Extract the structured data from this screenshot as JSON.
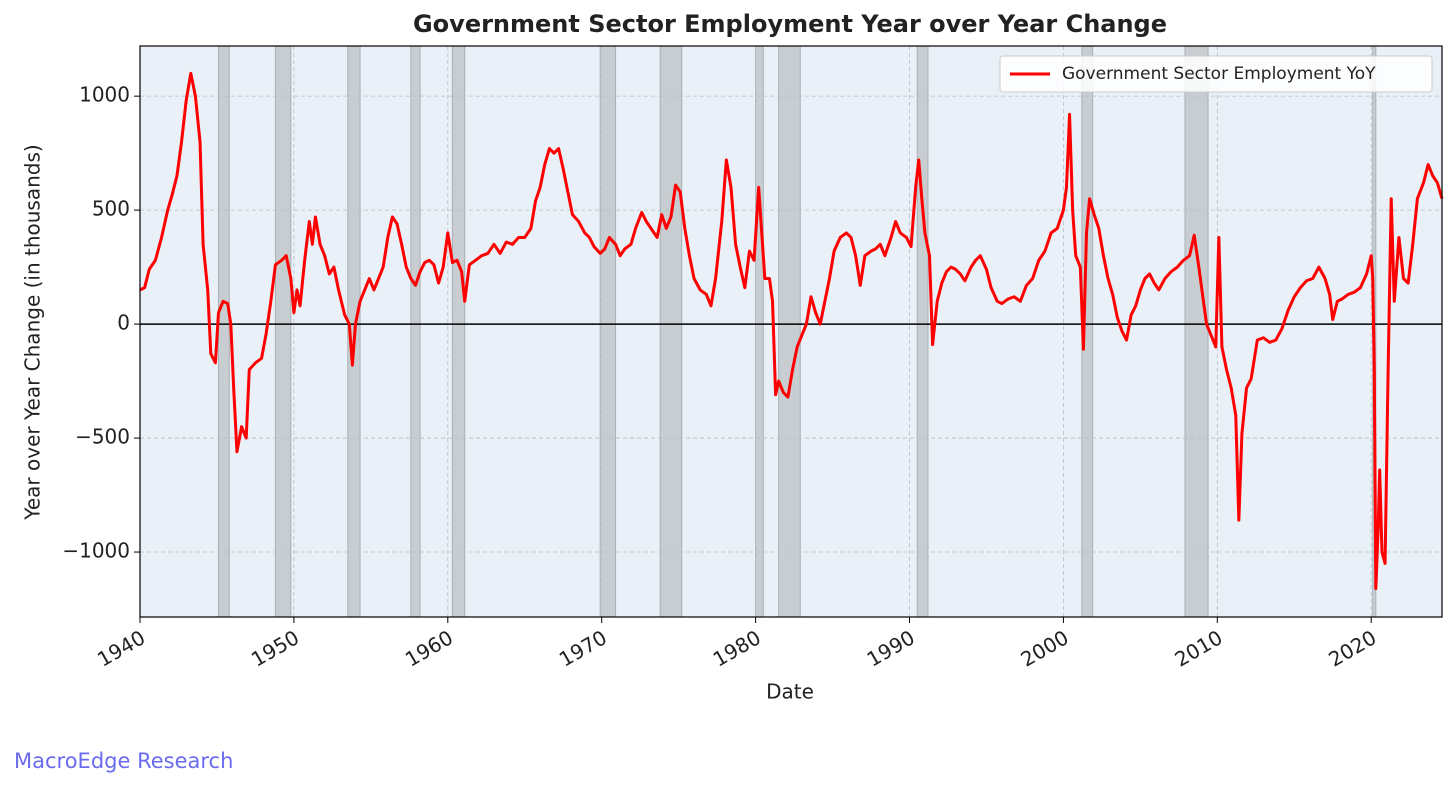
{
  "chart_data": {
    "type": "line",
    "title": "Government Sector Employment Year over Year Change",
    "xlabel": "Date",
    "ylabel": "Year over Year Change (in thousands)",
    "watermark": "MacroEdge Research",
    "legend": "upper right",
    "grid": true,
    "hline": 0,
    "xlim": [
      1940,
      2024.6
    ],
    "ylim": [
      -1285,
      1220
    ],
    "xticks": [
      1940,
      1950,
      1960,
      1970,
      1980,
      1990,
      2000,
      2010,
      2020
    ],
    "yticks": [
      {
        "value": -1000,
        "label": "−1000"
      },
      {
        "value": -500,
        "label": "−500"
      },
      0,
      500,
      1000
    ],
    "recessions": [
      [
        1945.1,
        1945.8
      ],
      [
        1948.8,
        1949.8
      ],
      [
        1953.5,
        1954.3
      ],
      [
        1957.6,
        1958.2
      ],
      [
        1960.3,
        1961.1
      ],
      [
        1969.9,
        1970.9
      ],
      [
        1973.8,
        1975.2
      ],
      [
        1980.0,
        1980.5
      ],
      [
        1981.5,
        1982.9
      ],
      [
        1990.5,
        1991.2
      ],
      [
        2001.2,
        2001.9
      ],
      [
        2007.9,
        2009.4
      ],
      [
        2020.1,
        2020.3
      ]
    ],
    "recession_color": "#c8cdd2",
    "x": [
      1940.0,
      1940.3,
      1940.6,
      1941.0,
      1941.4,
      1941.8,
      1942.1,
      1942.4,
      1942.7,
      1943.0,
      1943.3,
      1943.6,
      1943.9,
      1944.1,
      1944.4,
      1944.6,
      1944.9,
      1945.1,
      1945.4,
      1945.7,
      1945.9,
      1946.1,
      1946.3,
      1946.6,
      1946.9,
      1947.1,
      1947.5,
      1947.9,
      1948.2,
      1948.5,
      1948.8,
      1949.2,
      1949.5,
      1949.8,
      1950.0,
      1950.2,
      1950.4,
      1950.7,
      1951.0,
      1951.2,
      1951.4,
      1951.7,
      1952.0,
      1952.3,
      1952.6,
      1952.9,
      1953.3,
      1953.6,
      1953.8,
      1954.0,
      1954.3,
      1954.6,
      1954.9,
      1955.2,
      1955.5,
      1955.8,
      1956.1,
      1956.4,
      1956.7,
      1957.0,
      1957.3,
      1957.6,
      1957.9,
      1958.2,
      1958.5,
      1958.8,
      1959.1,
      1959.4,
      1959.7,
      1960.0,
      1960.3,
      1960.6,
      1960.9,
      1961.1,
      1961.4,
      1961.8,
      1962.2,
      1962.6,
      1963.0,
      1963.4,
      1963.8,
      1964.2,
      1964.6,
      1965.0,
      1965.4,
      1965.7,
      1966.0,
      1966.3,
      1966.6,
      1966.9,
      1967.2,
      1967.5,
      1967.8,
      1968.1,
      1968.5,
      1968.9,
      1969.2,
      1969.5,
      1969.9,
      1970.2,
      1970.5,
      1970.9,
      1971.2,
      1971.5,
      1971.9,
      1972.2,
      1972.6,
      1972.9,
      1973.2,
      1973.6,
      1973.9,
      1974.2,
      1974.5,
      1974.8,
      1975.1,
      1975.4,
      1975.7,
      1976.0,
      1976.4,
      1976.8,
      1977.1,
      1977.4,
      1977.8,
      1978.1,
      1978.4,
      1978.7,
      1979.0,
      1979.3,
      1979.6,
      1979.9,
      1980.2,
      1980.4,
      1980.6,
      1980.9,
      1981.1,
      1981.3,
      1981.5,
      1981.8,
      1982.1,
      1982.4,
      1982.7,
      1983.0,
      1983.3,
      1983.6,
      1983.9,
      1984.2,
      1984.5,
      1984.8,
      1985.1,
      1985.5,
      1985.9,
      1986.2,
      1986.5,
      1986.8,
      1987.1,
      1987.5,
      1987.8,
      1988.1,
      1988.4,
      1988.8,
      1989.1,
      1989.4,
      1989.8,
      1990.1,
      1990.4,
      1990.6,
      1990.8,
      1991.0,
      1991.3,
      1991.5,
      1991.8,
      1992.1,
      1992.4,
      1992.7,
      1993.0,
      1993.3,
      1993.6,
      1994.0,
      1994.3,
      1994.6,
      1995.0,
      1995.3,
      1995.7,
      1996.0,
      1996.4,
      1996.8,
      1997.2,
      1997.6,
      1998.0,
      1998.4,
      1998.8,
      1999.2,
      1999.6,
      2000.0,
      2000.2,
      2000.4,
      2000.6,
      2000.8,
      2001.1,
      2001.3,
      2001.5,
      2001.7,
      2002.0,
      2002.3,
      2002.6,
      2002.9,
      2003.2,
      2003.5,
      2003.8,
      2004.1,
      2004.4,
      2004.7,
      2005.0,
      2005.3,
      2005.6,
      2005.9,
      2006.2,
      2006.6,
      2007.0,
      2007.4,
      2007.8,
      2008.2,
      2008.5,
      2008.8,
      2009.0,
      2009.3,
      2009.6,
      2009.9,
      2010.1,
      2010.3,
      2010.6,
      2010.9,
      2011.2,
      2011.4,
      2011.6,
      2011.9,
      2012.2,
      2012.6,
      2013.0,
      2013.4,
      2013.8,
      2014.2,
      2014.6,
      2015.0,
      2015.4,
      2015.8,
      2016.2,
      2016.6,
      2017.0,
      2017.3,
      2017.5,
      2017.8,
      2018.1,
      2018.5,
      2018.9,
      2019.3,
      2019.7,
      2020.0,
      2020.1,
      2020.2,
      2020.3,
      2020.45,
      2020.55,
      2020.7,
      2020.9,
      2021.1,
      2021.3,
      2021.5,
      2021.8,
      2022.1,
      2022.4,
      2022.7,
      2023.0,
      2023.4,
      2023.7,
      2024.0,
      2024.3,
      2024.6
    ],
    "series": [
      {
        "name": "Government Sector Employment YoY",
        "color": "#ff0000",
        "values": [
          150,
          160,
          240,
          280,
          380,
          500,
          570,
          650,
          800,
          980,
          1100,
          1000,
          800,
          350,
          150,
          -130,
          -170,
          50,
          100,
          90,
          0,
          -300,
          -560,
          -450,
          -500,
          -200,
          -170,
          -150,
          -40,
          100,
          260,
          280,
          300,
          200,
          50,
          150,
          80,
          280,
          450,
          350,
          470,
          350,
          300,
          220,
          250,
          150,
          40,
          0,
          -180,
          0,
          100,
          150,
          200,
          150,
          200,
          250,
          380,
          470,
          440,
          350,
          250,
          200,
          170,
          230,
          270,
          280,
          260,
          180,
          250,
          400,
          270,
          280,
          230,
          100,
          260,
          280,
          300,
          310,
          350,
          310,
          360,
          350,
          380,
          380,
          420,
          540,
          600,
          700,
          770,
          750,
          770,
          680,
          580,
          480,
          450,
          400,
          380,
          340,
          310,
          330,
          380,
          350,
          300,
          330,
          350,
          420,
          490,
          450,
          420,
          380,
          480,
          420,
          470,
          610,
          580,
          420,
          300,
          200,
          150,
          130,
          80,
          200,
          450,
          720,
          600,
          350,
          250,
          160,
          320,
          280,
          600,
          400,
          200,
          200,
          100,
          -310,
          -250,
          -300,
          -320,
          -200,
          -100,
          -50,
          0,
          120,
          50,
          0,
          100,
          200,
          320,
          380,
          400,
          380,
          300,
          170,
          300,
          320,
          330,
          350,
          300,
          380,
          450,
          400,
          380,
          340,
          600,
          720,
          550,
          400,
          300,
          -90,
          100,
          180,
          230,
          250,
          240,
          220,
          190,
          250,
          280,
          300,
          240,
          160,
          100,
          90,
          110,
          120,
          100,
          170,
          200,
          280,
          320,
          400,
          420,
          500,
          600,
          920,
          500,
          300,
          250,
          -110,
          400,
          550,
          480,
          420,
          300,
          200,
          130,
          30,
          -30,
          -70,
          40,
          80,
          150,
          200,
          220,
          180,
          150,
          200,
          230,
          250,
          280,
          300,
          390,
          250,
          150,
          0,
          -50,
          -100,
          380,
          -100,
          -200,
          -280,
          -400,
          -860,
          -480,
          -280,
          -240,
          -70,
          -60,
          -80,
          -70,
          -20,
          60,
          120,
          160,
          190,
          200,
          250,
          200,
          130,
          20,
          100,
          110,
          130,
          140,
          160,
          220,
          300,
          200,
          -200,
          -1160,
          -900,
          -640,
          -1000,
          -1050,
          -200,
          550,
          100,
          380,
          200,
          180,
          350,
          550,
          620,
          700,
          650,
          620,
          550
        ]
      }
    ]
  }
}
